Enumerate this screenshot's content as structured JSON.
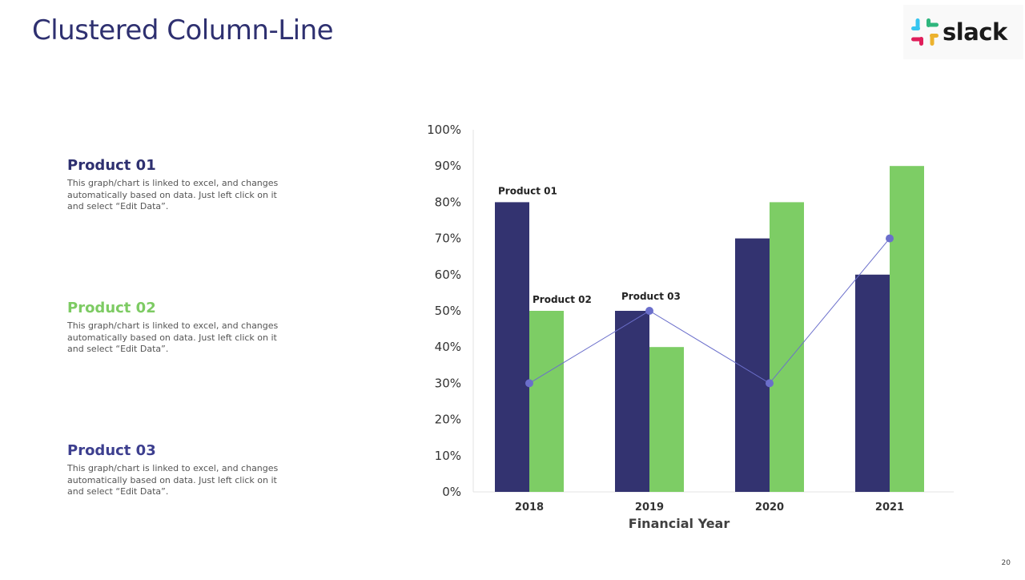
{
  "slide": {
    "title": "Clustered Column-Line",
    "page_number": "20"
  },
  "logo": {
    "text": "slack",
    "colors": {
      "blue": "#36C5F0",
      "green": "#2EB67D",
      "yellow": "#ECB22E",
      "red": "#E01E5A"
    }
  },
  "legend": [
    {
      "title": "Product 01",
      "color": "#2e3070",
      "text": "This graph/chart is linked to excel, and changes automatically based on data. Just left click on it and select “Edit Data”."
    },
    {
      "title": "Product 02",
      "color": "#7dcb63",
      "text": "This graph/chart is linked to excel, and changes automatically based on data. Just left click on it and select “Edit Data”."
    },
    {
      "title": "Product 03",
      "color": "#3d3f8f",
      "text": "This graph/chart is linked to excel, and changes automatically based on data. Just left click on it and select “Edit Data”."
    }
  ],
  "chart_data": {
    "type": "bar",
    "title": "",
    "xlabel": "Financial Year",
    "ylabel": "",
    "categories": [
      "2018",
      "2019",
      "2020",
      "2021"
    ],
    "ylim": [
      0,
      100
    ],
    "yticks": [
      0,
      10,
      20,
      30,
      40,
      50,
      60,
      70,
      80,
      90,
      100
    ],
    "ytick_suffix": "%",
    "grid": false,
    "series": [
      {
        "name": "Product 01",
        "type": "bar",
        "color": "#333370",
        "values": [
          80,
          50,
          70,
          60
        ]
      },
      {
        "name": "Product 02",
        "type": "bar",
        "color": "#7dcd65",
        "values": [
          50,
          40,
          80,
          90
        ]
      },
      {
        "name": "Product 03",
        "type": "line",
        "color": "#6b6fcb",
        "values": [
          30,
          50,
          30,
          70
        ]
      }
    ],
    "annotations": [
      {
        "text": "Product 01",
        "series": 0,
        "category": 0
      },
      {
        "text": "Product 02",
        "series": 1,
        "category": 0
      },
      {
        "text": "Product 03",
        "series": 2,
        "category": 1
      }
    ]
  }
}
